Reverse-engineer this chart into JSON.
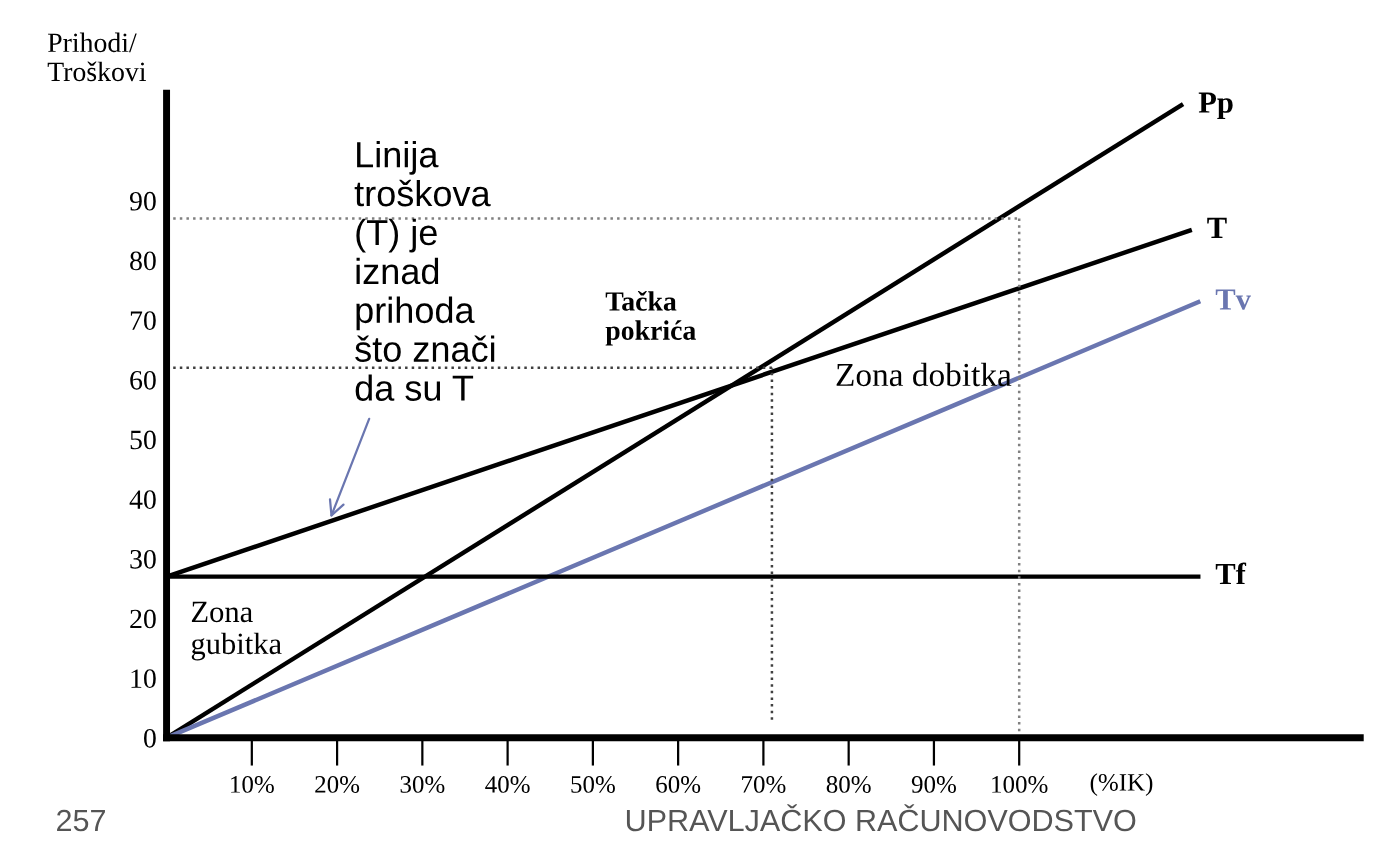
{
  "chart_data": {
    "type": "line",
    "ylabel": "Prihodi/\nTroškovi",
    "xlabel": "(%IK)",
    "xlim": [
      0,
      140
    ],
    "ylim": [
      0,
      108
    ],
    "xticks": [
      {
        "value": 10,
        "label": "10%"
      },
      {
        "value": 20,
        "label": "20%"
      },
      {
        "value": 30,
        "label": "30%"
      },
      {
        "value": 40,
        "label": "40%"
      },
      {
        "value": 50,
        "label": "50%"
      },
      {
        "value": 60,
        "label": "60%"
      },
      {
        "value": 70,
        "label": "70%"
      },
      {
        "value": 80,
        "label": "80%"
      },
      {
        "value": 90,
        "label": "90%"
      },
      {
        "value": 100,
        "label": "100%"
      }
    ],
    "yticks": [
      0,
      10,
      20,
      30,
      40,
      50,
      60,
      70,
      80,
      90
    ],
    "grid": false,
    "series": [
      {
        "name": "Pp",
        "color": "#000000",
        "x": [
          0,
          119
        ],
        "values": [
          0,
          106
        ]
      },
      {
        "name": "T",
        "color": "#000000",
        "x": [
          0,
          120
        ],
        "values": [
          27,
          85
        ]
      },
      {
        "name": "Tv",
        "color": "#6a76b0",
        "x": [
          0,
          121
        ],
        "values": [
          0,
          73
        ]
      },
      {
        "name": "Tf",
        "color": "#000000",
        "x": [
          0,
          121
        ],
        "values": [
          27,
          27
        ]
      },
      {
        "color": "#808080",
        "line_style": "dotted",
        "x": [
          0,
          100
        ],
        "values": [
          87,
          87
        ]
      },
      {
        "color": "#808080",
        "line_style": "dotted",
        "x": [
          100,
          100
        ],
        "values": [
          0,
          87
        ]
      },
      {
        "color": "#404040",
        "line_style": "dotted",
        "x": [
          0,
          71
        ],
        "values": [
          62,
          62
        ]
      },
      {
        "color": "#404040",
        "line_style": "dotted",
        "x": [
          71,
          71
        ],
        "values": [
          3,
          62
        ]
      }
    ],
    "annotations": [
      {
        "text": "Tačka\npokrića",
        "x": 71,
        "y": 62
      },
      {
        "text": "Linija\ntroškova\n(T) je\niznad\nprihoda\nšto znači\nda su T",
        "x": 19,
        "y": 36
      },
      "Zona dobitka",
      "Zona\ngubitka",
      "257",
      "UPRAVLJAČKO RAČUNOVODSTVO"
    ]
  }
}
